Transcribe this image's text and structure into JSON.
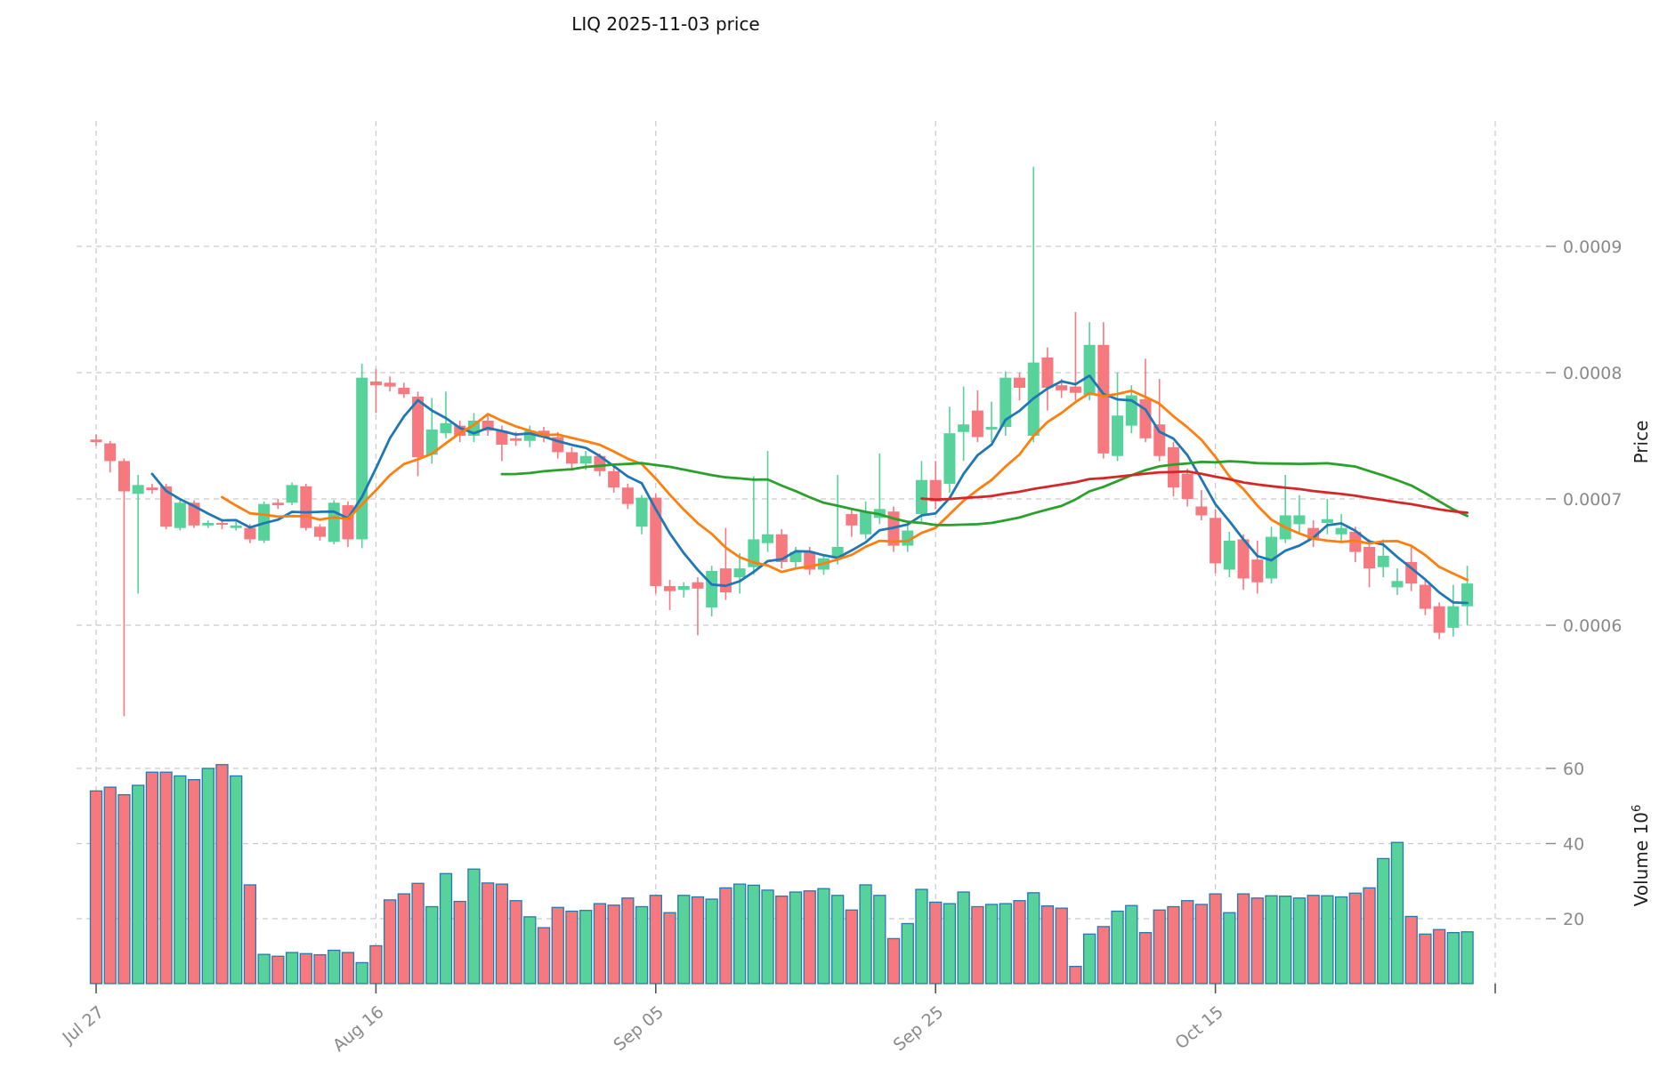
{
  "title": "LIQ  2025-11-03  price",
  "chart_data": {
    "type": "candlestick",
    "title": "LIQ  2025-11-03  price",
    "price_scale": 0.0001,
    "price_axis": {
      "label": "Price",
      "ticks": [
        {
          "value": 9,
          "label": "0.0009"
        },
        {
          "value": 8,
          "label": "0.0008"
        },
        {
          "value": 7,
          "label": "0.0007"
        },
        {
          "value": 6,
          "label": "0.0006"
        }
      ],
      "ylim_units": [
        5.1,
        9.8
      ]
    },
    "volume_axis": {
      "label_base": "Volume 10",
      "label_exponent": "6",
      "unit": "millions",
      "ticks": [
        {
          "value": 60,
          "label": "60"
        },
        {
          "value": 40,
          "label": "40"
        },
        {
          "value": 20,
          "label": "20"
        }
      ]
    },
    "x_ticks": [
      {
        "index": 0,
        "label": "Jul 27"
      },
      {
        "index": 20,
        "label": "Aug 16"
      },
      {
        "index": 40,
        "label": "Sep 05"
      },
      {
        "index": 60,
        "label": "Sep 25"
      },
      {
        "index": 80,
        "label": "Oct 15"
      },
      {
        "index": 100,
        "label": ""
      }
    ],
    "grid": true,
    "moving_averages": [
      {
        "name": "ma-5",
        "window": 5,
        "color": "#1f77b4"
      },
      {
        "name": "ma-10",
        "window": 10,
        "color": "#ff7f0e"
      },
      {
        "name": "ma-30",
        "window": 30,
        "color": "#2ca02c"
      },
      {
        "name": "ma-60",
        "window": 60,
        "color": "#d62728"
      }
    ],
    "colors": {
      "up": "#57d29a",
      "down": "#f5797f",
      "volume_edge": "#2878b0",
      "grid": "#c9c9c9",
      "tick_text": "#8a8a8a",
      "x_tick_mark": "#555555",
      "axis_label_text": "#1f1f1f",
      "title_text": "#111111",
      "background": "#ffffff"
    },
    "candles": [
      [
        7.47,
        7.51,
        7.42,
        7.45
      ],
      [
        7.44,
        7.46,
        7.21,
        7.3
      ],
      [
        7.3,
        7.32,
        5.28,
        7.06
      ],
      [
        7.04,
        7.19,
        6.25,
        7.11
      ],
      [
        7.09,
        7.12,
        7.04,
        7.07
      ],
      [
        7.1,
        7.12,
        6.76,
        6.78
      ],
      [
        6.77,
        6.99,
        6.75,
        6.97
      ],
      [
        6.97,
        6.99,
        6.77,
        6.79
      ],
      [
        6.79,
        6.83,
        6.77,
        6.81
      ],
      [
        6.81,
        6.84,
        6.76,
        6.8
      ],
      [
        6.77,
        6.82,
        6.75,
        6.79
      ],
      [
        6.77,
        6.8,
        6.65,
        6.68
      ],
      [
        6.67,
        6.98,
        6.65,
        6.96
      ],
      [
        6.97,
        7.0,
        6.92,
        6.95
      ],
      [
        6.97,
        7.13,
        6.95,
        7.11
      ],
      [
        7.1,
        7.12,
        6.75,
        6.77
      ],
      [
        6.78,
        6.8,
        6.67,
        6.7
      ],
      [
        6.66,
        6.99,
        6.64,
        6.97
      ],
      [
        6.95,
        6.98,
        6.62,
        6.68
      ],
      [
        6.68,
        8.07,
        6.61,
        7.96
      ],
      [
        7.93,
        8.03,
        7.68,
        7.9
      ],
      [
        7.92,
        7.97,
        7.85,
        7.89
      ],
      [
        7.88,
        7.92,
        7.8,
        7.83
      ],
      [
        7.81,
        7.85,
        7.18,
        7.33
      ],
      [
        7.35,
        7.8,
        7.28,
        7.55
      ],
      [
        7.52,
        7.85,
        7.48,
        7.6
      ],
      [
        7.58,
        7.62,
        7.45,
        7.5
      ],
      [
        7.5,
        7.68,
        7.45,
        7.62
      ],
      [
        7.62,
        7.66,
        7.5,
        7.54
      ],
      [
        7.54,
        7.58,
        7.3,
        7.43
      ],
      [
        7.48,
        7.53,
        7.42,
        7.46
      ],
      [
        7.46,
        7.58,
        7.41,
        7.54
      ],
      [
        7.54,
        7.57,
        7.45,
        7.49
      ],
      [
        7.49,
        7.53,
        7.32,
        7.37
      ],
      [
        7.37,
        7.41,
        7.24,
        7.28
      ],
      [
        7.28,
        7.38,
        7.23,
        7.34
      ],
      [
        7.34,
        7.36,
        7.18,
        7.22
      ],
      [
        7.22,
        7.26,
        7.05,
        7.09
      ],
      [
        7.09,
        7.12,
        6.92,
        6.96
      ],
      [
        6.78,
        7.03,
        6.72,
        7.01
      ],
      [
        7.01,
        7.04,
        6.25,
        6.31
      ],
      [
        6.31,
        6.36,
        6.12,
        6.27
      ],
      [
        6.28,
        6.34,
        6.22,
        6.31
      ],
      [
        6.34,
        6.38,
        5.92,
        6.29
      ],
      [
        6.14,
        6.47,
        6.07,
        6.43
      ],
      [
        6.45,
        6.77,
        6.2,
        6.26
      ],
      [
        6.38,
        6.57,
        6.25,
        6.45
      ],
      [
        6.46,
        7.18,
        6.4,
        6.68
      ],
      [
        6.65,
        7.38,
        6.58,
        6.72
      ],
      [
        6.72,
        6.76,
        6.45,
        6.5
      ],
      [
        6.5,
        6.62,
        6.45,
        6.58
      ],
      [
        6.58,
        6.62,
        6.4,
        6.44
      ],
      [
        6.44,
        6.56,
        6.4,
        6.53
      ],
      [
        6.53,
        7.19,
        6.48,
        6.62
      ],
      [
        6.88,
        6.92,
        6.7,
        6.79
      ],
      [
        6.72,
        6.98,
        6.68,
        6.9
      ],
      [
        6.85,
        7.36,
        6.8,
        6.92
      ],
      [
        6.9,
        6.94,
        6.58,
        6.63
      ],
      [
        6.63,
        6.8,
        6.58,
        6.75
      ],
      [
        6.88,
        7.3,
        6.82,
        7.15
      ],
      [
        7.15,
        7.3,
        6.92,
        6.98
      ],
      [
        7.12,
        7.73,
        7.05,
        7.52
      ],
      [
        7.53,
        7.89,
        7.3,
        7.59
      ],
      [
        7.7,
        7.86,
        7.45,
        7.49
      ],
      [
        7.55,
        7.77,
        7.45,
        7.57
      ],
      [
        7.57,
        8.01,
        7.5,
        7.96
      ],
      [
        7.96,
        8.0,
        7.78,
        7.88
      ],
      [
        7.5,
        9.63,
        7.45,
        8.08
      ],
      [
        8.12,
        8.2,
        7.7,
        7.88
      ],
      [
        7.9,
        7.95,
        7.8,
        7.86
      ],
      [
        7.89,
        8.48,
        7.78,
        7.84
      ],
      [
        7.82,
        8.4,
        7.78,
        8.22
      ],
      [
        8.22,
        8.4,
        7.32,
        7.36
      ],
      [
        7.34,
        8.0,
        7.3,
        7.66
      ],
      [
        7.58,
        7.9,
        7.52,
        7.82
      ],
      [
        7.79,
        8.11,
        7.45,
        7.48
      ],
      [
        7.59,
        7.95,
        7.3,
        7.34
      ],
      [
        7.41,
        7.45,
        7.02,
        7.09
      ],
      [
        7.2,
        7.24,
        6.94,
        7.0
      ],
      [
        6.94,
        7.07,
        6.83,
        6.87
      ],
      [
        6.85,
        6.92,
        6.41,
        6.49
      ],
      [
        6.44,
        6.74,
        6.38,
        6.67
      ],
      [
        6.68,
        6.72,
        6.28,
        6.37
      ],
      [
        6.52,
        6.67,
        6.25,
        6.34
      ],
      [
        6.37,
        6.78,
        6.33,
        6.7
      ],
      [
        6.68,
        7.19,
        6.65,
        6.87
      ],
      [
        6.8,
        7.03,
        6.72,
        6.87
      ],
      [
        6.77,
        6.83,
        6.62,
        6.68
      ],
      [
        6.81,
        7.0,
        6.72,
        6.84
      ],
      [
        6.72,
        6.88,
        6.65,
        6.77
      ],
      [
        6.74,
        6.78,
        6.5,
        6.58
      ],
      [
        6.62,
        6.68,
        6.3,
        6.45
      ],
      [
        6.46,
        6.68,
        6.38,
        6.55
      ],
      [
        6.3,
        6.45,
        6.24,
        6.35
      ],
      [
        6.5,
        6.62,
        6.27,
        6.33
      ],
      [
        6.32,
        6.36,
        6.08,
        6.13
      ],
      [
        6.15,
        6.18,
        5.89,
        5.94
      ],
      [
        5.98,
        6.32,
        5.91,
        6.15
      ],
      [
        6.15,
        6.47,
        6.0,
        6.33
      ]
    ],
    "volumes": [
      54,
      55,
      53,
      55.5,
      59,
      59,
      58,
      57,
      60,
      61,
      58,
      29,
      10.5,
      10,
      11,
      10.7,
      10.4,
      11.6,
      11,
      8.3,
      12.8,
      25,
      26.6,
      29.4,
      23.2,
      32,
      24.6,
      33.2,
      29.5,
      29.2,
      24.8,
      20.5,
      17.6,
      23,
      22,
      22.2,
      24,
      23.6,
      25.5,
      23.2,
      26.2,
      21.6,
      26.2,
      25.8,
      25.2,
      28.2,
      29.2,
      28.9,
      27.6,
      26,
      27.1,
      27.4,
      28,
      26.2,
      22.3,
      29,
      26.2,
      14.7,
      18.7,
      27.8,
      24.4,
      24,
      27.1,
      23.2,
      23.8,
      24,
      24.8,
      26.9,
      23.4,
      22.8,
      7.3,
      15.9,
      17.9,
      22,
      23.5,
      16.3,
      22.3,
      23.2,
      24.8,
      23.8,
      26.6,
      21.6,
      26.6,
      25.5,
      26.1,
      26,
      25.5,
      26.2,
      26.1,
      25.8,
      26.8,
      28.2,
      36,
      40.3,
      20.6,
      15.9,
      17.1,
      16.3,
      16.5
    ]
  }
}
